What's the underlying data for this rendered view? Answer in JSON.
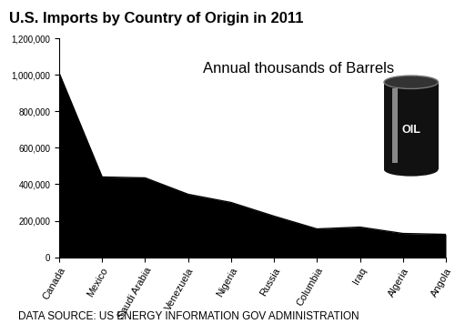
{
  "chart_data": {
    "type": "area",
    "title": "U.S. Imports by Country of Origin in 2011",
    "subtitle": "Annual thousands of Barrels",
    "note": "DATA SOURCE: US ENERGY INFORMATION GOV ADMINISTRATION",
    "icon_label": "OIL",
    "categories": [
      "Canada",
      "Mexico",
      "Saudi Arabia",
      "Venezuela",
      "Nigeria",
      "Russia",
      "Columbia",
      "Iraq",
      "Algeria",
      "Angola"
    ],
    "values": [
      1010000,
      440000,
      435000,
      345000,
      300000,
      225000,
      155000,
      165000,
      130000,
      125000
    ],
    "color": "#000000",
    "ylim": [
      0,
      1200000
    ],
    "yticks": [
      0,
      {
        "value": 200000,
        "label": "200,000"
      },
      {
        "value": 400000,
        "label": "400,000"
      },
      {
        "value": 600000,
        "label": "600,000"
      },
      {
        "value": 800000,
        "label": "800,000"
      },
      {
        "value": 1000000,
        "label": "1,000,000"
      },
      {
        "value": 1200000,
        "label": "1,200,000"
      }
    ],
    "grid": false
  }
}
